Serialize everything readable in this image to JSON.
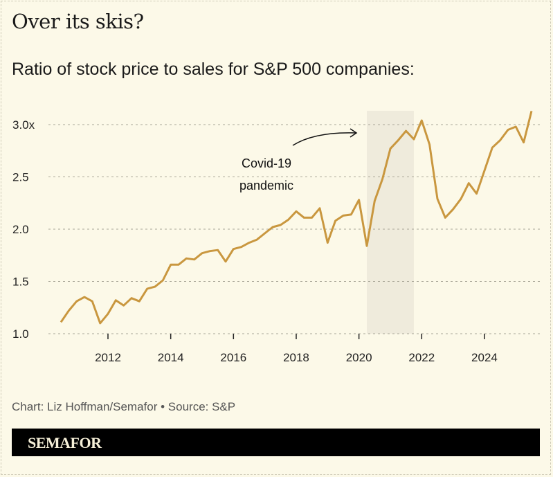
{
  "title": "Over its skis?",
  "subtitle": "Ratio of stock price to sales for S&P 500 companies:",
  "source": "Chart: Liz Hoffman/Semafor • Source: S&P",
  "brand": "SEMAFOR",
  "colors": {
    "line": "#c9973f",
    "shade": "#efebdc",
    "background": "#fcf9e8"
  },
  "chart_data": {
    "type": "line",
    "title": "Ratio of stock price to sales for S&P 500 companies:",
    "xlim": [
      2010.5,
      2025.5
    ],
    "ylim": [
      1.0,
      3.15
    ],
    "grid": true,
    "x_ticks": [
      2012,
      2014,
      2016,
      2018,
      2020,
      2022,
      2024
    ],
    "x_tick_labels": [
      "2012",
      "2014",
      "2016",
      "2018",
      "2020",
      "2022",
      "2024"
    ],
    "y_ticks": [
      1.0,
      1.5,
      2.0,
      2.5,
      3.0
    ],
    "y_tick_labels": [
      "1.0",
      "1.5",
      "2.0",
      "2.5",
      "3.0x"
    ],
    "x_start": 2010.5,
    "x_step": 0.25,
    "values": [
      1.11,
      1.22,
      1.31,
      1.35,
      1.31,
      1.1,
      1.19,
      1.32,
      1.27,
      1.34,
      1.31,
      1.43,
      1.45,
      1.51,
      1.66,
      1.66,
      1.72,
      1.71,
      1.77,
      1.79,
      1.8,
      1.69,
      1.81,
      1.83,
      1.87,
      1.9,
      1.96,
      2.02,
      2.04,
      2.09,
      2.17,
      2.11,
      2.11,
      2.2,
      1.87,
      2.08,
      2.13,
      2.14,
      2.28,
      1.84,
      2.27,
      2.48,
      2.77,
      2.85,
      2.94,
      2.86,
      3.04,
      2.81,
      2.29,
      2.11,
      2.19,
      2.29,
      2.44,
      2.34,
      2.56,
      2.78,
      2.85,
      2.95,
      2.98,
      2.83,
      3.13
    ],
    "shaded_region": {
      "from": 2020.25,
      "to": 2021.75
    },
    "annotation": {
      "lines": [
        "Covid-19",
        "pandemic"
      ]
    }
  }
}
